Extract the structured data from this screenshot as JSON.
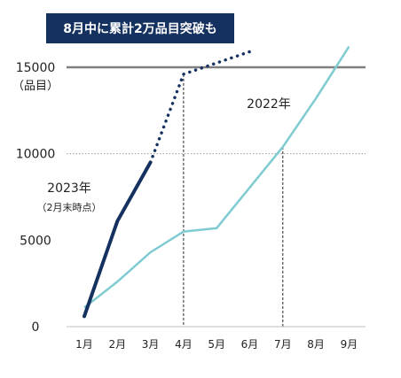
{
  "banner": "8月中に累計2万品目突破も",
  "chart_data": {
    "type": "line",
    "categories": [
      "1月",
      "2月",
      "3月",
      "4月",
      "5月",
      "6月",
      "7月",
      "8月",
      "9月"
    ],
    "ylim": [
      0,
      15000
    ],
    "y_ticks": [
      "0",
      "5000",
      "10000",
      "15000"
    ],
    "y_unit": "（品目）",
    "reference_line": 15000,
    "series": [
      {
        "name": "2023年",
        "sublabel": "（2月末時点）",
        "color": "#14315f",
        "solid": [
          [
            1,
            600
          ],
          [
            2,
            6100
          ],
          [
            3,
            9500
          ]
        ],
        "dotted": [
          [
            3,
            9500
          ],
          [
            4,
            14600
          ],
          [
            6,
            15900
          ]
        ]
      },
      {
        "name": "2022年",
        "color": "#7ecbd1",
        "solid": [
          [
            1,
            1100
          ],
          [
            2,
            2600
          ],
          [
            3,
            4300
          ],
          [
            4,
            5500
          ],
          [
            5,
            5700
          ],
          [
            7,
            10400
          ],
          [
            8,
            13200
          ],
          [
            9,
            16200
          ]
        ]
      }
    ],
    "dashed_markers": [
      4,
      7
    ]
  }
}
